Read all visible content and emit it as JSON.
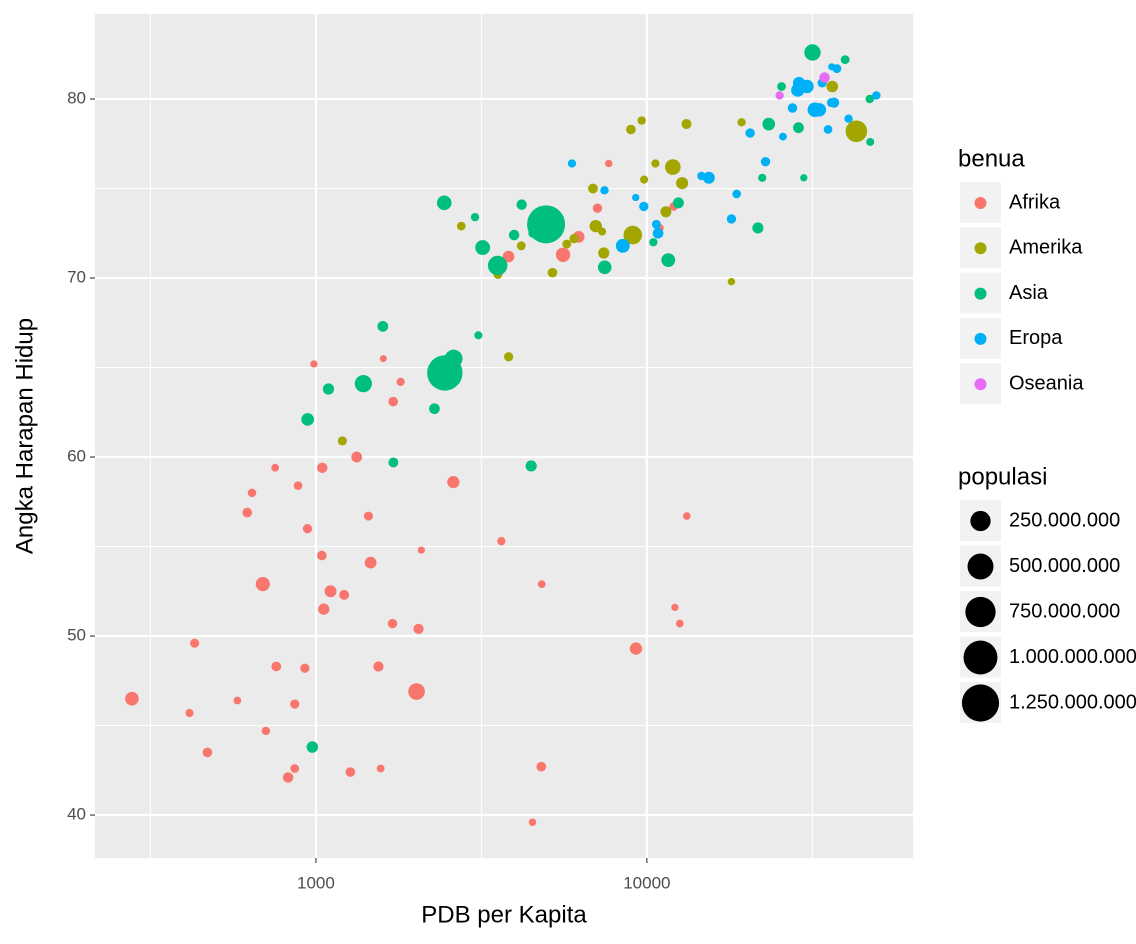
{
  "chart_data": {
    "type": "scatter",
    "x_label": "PDB per Kapita",
    "y_label": "Angka Harapan Hidup",
    "xscale": "log",
    "xlim": [
      215,
      63700
    ],
    "xticks": [
      1000,
      10000
    ],
    "xminor_grid": [
      316,
      3162,
      31623
    ],
    "ylim": [
      37.6,
      84.75
    ],
    "yticks": [
      40,
      50,
      60,
      70,
      80
    ],
    "yminor_grid": [
      45,
      55,
      65,
      75
    ],
    "grid": true,
    "legend_title": "benua",
    "size_legend": {
      "title": "populasi",
      "values": [
        250000000,
        500000000,
        750000000,
        1000000000,
        1250000000
      ],
      "value_labels": [
        "250.000.000",
        "500.000.000",
        "750.000.000",
        "1.000.000.000",
        "1.250.000.000"
      ]
    },
    "series": [
      {
        "name": "Afrika",
        "color": "#F8766D",
        "x": [
          6223,
          4797,
          1441,
          12570,
          1217,
          430,
          2042,
          706,
          1704,
          986,
          278,
          3633,
          1545,
          2082,
          5581,
          12154,
          641,
          691,
          13206,
          753,
          1328,
          943,
          579,
          1463,
          1569,
          415,
          12057,
          1045,
          759,
          1042,
          1803,
          10957,
          3820,
          824,
          4811,
          620,
          2014,
          7670,
          863,
          1598,
          1712,
          863,
          926,
          9270,
          2602,
          4513,
          1107,
          883,
          7093,
          1056,
          1271,
          470
        ],
        "y": [
          72.3,
          42.7,
          56.7,
          50.7,
          52.3,
          49.6,
          50.4,
          44.7,
          50.7,
          65.2,
          46.5,
          55.3,
          48.3,
          54.8,
          71.3,
          51.6,
          58.0,
          52.9,
          56.7,
          59.4,
          60.0,
          56.0,
          46.4,
          54.1,
          42.6,
          45.7,
          74.0,
          59.4,
          48.3,
          54.5,
          64.2,
          72.8,
          71.2,
          42.1,
          52.9,
          56.9,
          46.9,
          76.4,
          46.2,
          65.5,
          63.1,
          42.6,
          48.2,
          49.3,
          58.6,
          39.6,
          52.5,
          58.4,
          73.9,
          51.5,
          42.4,
          43.5
        ],
        "size": [
          33300000,
          12400000,
          8100000,
          1600000,
          14300000,
          8400000,
          17700000,
          4400000,
          10200000,
          700000,
          64600000,
          3800000,
          18000000,
          500000,
          80300000,
          550000,
          4900000,
          76500000,
          1450000,
          1700000,
          22900000,
          9900000,
          1500000,
          35600000,
          2000000,
          3200000,
          6000000,
          19200000,
          13300000,
          12000000,
          3300000,
          1250000,
          33800000,
          19900000,
          2100000,
          12900000,
          135000000,
          800000,
          8900000,
          200000,
          12300000,
          6100000,
          9100000,
          44000000,
          42300000,
          1100000,
          38100000,
          5700000,
          10300000,
          29200000,
          11700000,
          12300000
        ]
      },
      {
        "name": "Amerika",
        "color": "#A3A500",
        "x": [
          12779,
          3822,
          9066,
          36319,
          13172,
          7007,
          9645,
          8948,
          6025,
          6873,
          5728,
          5186,
          1202,
          3548,
          7321,
          11978,
          2749,
          9809,
          4173,
          7409,
          19329,
          18009,
          42952,
          10611,
          11416
        ],
        "y": [
          75.3,
          65.6,
          72.4,
          80.7,
          78.6,
          72.9,
          78.8,
          78.3,
          72.2,
          75.0,
          71.9,
          70.3,
          60.9,
          70.2,
          72.6,
          76.2,
          72.9,
          75.5,
          71.8,
          71.4,
          78.7,
          69.8,
          78.2,
          76.4,
          73.7
        ],
        "size": [
          40300000,
          9100000,
          190000000,
          33400000,
          16300000,
          44200000,
          4100000,
          11400000,
          9300000,
          13800000,
          6900000,
          12600000,
          8500000,
          7500000,
          2800000,
          108700000,
          5700000,
          3200000,
          6700000,
          28700000,
          3900000,
          1060000,
          301000000,
          3400000,
          26100000
        ]
      },
      {
        "name": "Asia",
        "color": "#00BF7D",
        "x": [
          975,
          29796,
          1391,
          1714,
          4959,
          39725,
          2452,
          3541,
          11606,
          4471,
          25523,
          31656,
          4519,
          1593,
          23348,
          47307,
          10461,
          12452,
          3096,
          944,
          1091,
          22316,
          2606,
          3190,
          21655,
          47143,
          3970,
          4185,
          28718,
          7458,
          2442,
          3025,
          2281
        ],
        "y": [
          43.8,
          75.6,
          64.1,
          59.7,
          73.0,
          82.2,
          64.7,
          70.7,
          71.0,
          59.5,
          80.7,
          82.6,
          72.5,
          67.3,
          78.6,
          77.6,
          72.0,
          74.2,
          66.8,
          62.1,
          63.8,
          75.6,
          65.5,
          71.7,
          72.8,
          80.0,
          72.4,
          74.1,
          78.4,
          70.6,
          74.2,
          73.4,
          62.7
        ],
        "size": [
          31900000,
          700000,
          150000000,
          14100000,
          1318700000,
          6980000,
          1110000000,
          223500000,
          69500000,
          27500000,
          6400000,
          127500000,
          6050000,
          23300000,
          49000000,
          2500000,
          3900000,
          24800000,
          2900000,
          47800000,
          28900000,
          3200000,
          169300000,
          91100000,
          27600000,
          4550000,
          20400000,
          19300000,
          23200000,
          65100000,
          85300000,
          4000000,
          22200000
        ]
      },
      {
        "name": "Eropa",
        "color": "#00B0F6",
        "x": [
          5937,
          36126,
          33693,
          7446,
          10681,
          14619,
          22833,
          35278,
          33207,
          30470,
          32170,
          27538,
          18009,
          36181,
          40676,
          28570,
          9254,
          36798,
          49357,
          15390,
          20510,
          10808,
          9787,
          18678,
          25768,
          28821,
          33860,
          37506,
          8458,
          33203
        ],
        "y": [
          76.4,
          79.8,
          79.4,
          74.9,
          73.0,
          75.7,
          76.5,
          78.3,
          79.3,
          80.7,
          79.4,
          79.5,
          73.3,
          81.8,
          78.9,
          80.5,
          74.5,
          79.8,
          80.2,
          75.6,
          78.1,
          72.5,
          74.0,
          74.7,
          77.9,
          80.9,
          80.9,
          81.7,
          71.8,
          79.4
        ],
        "size": [
          3600000,
          8200000,
          10400000,
          4550000,
          7300000,
          4500000,
          10200000,
          5500000,
          5200000,
          61100000,
          82400000,
          10700000,
          9960000,
          300000,
          4100000,
          58100000,
          680000,
          16600000,
          4600000,
          38500000,
          10600000,
          22300000,
          10200000,
          5400000,
          2000000,
          40400000,
          9000000,
          7550000,
          71200000,
          60800000
        ]
      },
      {
        "name": "Oseania",
        "color": "#E76BF3",
        "x": [
          34435,
          25185
        ],
        "y": [
          81.2,
          80.2
        ],
        "size": [
          20400000,
          4100000
        ]
      }
    ]
  }
}
